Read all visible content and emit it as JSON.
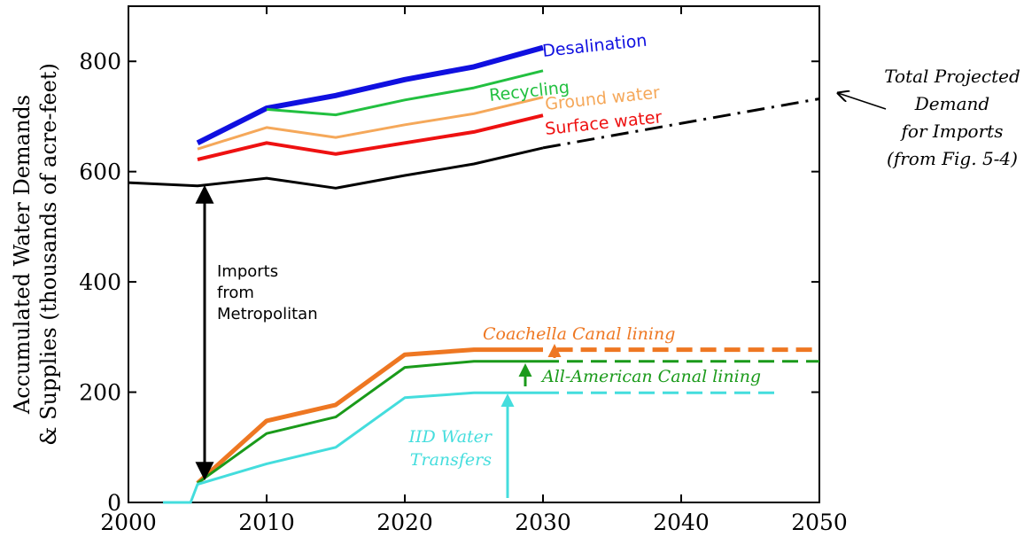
{
  "chart_data": {
    "type": "line",
    "xlabel": "",
    "ylabel_line1": "Accumulated Water Demands",
    "ylabel_line2": "& Supplies (thousands of acre-feet)",
    "xlim": [
      2000,
      2050
    ],
    "ylim": [
      0,
      900
    ],
    "x_ticks": [
      2000,
      2010,
      2020,
      2030,
      2040,
      2050
    ],
    "y_ticks": [
      0,
      200,
      400,
      600,
      800
    ],
    "grid": false,
    "series": [
      {
        "name": "Desalination",
        "color": "#1010e0",
        "style": "solid",
        "width": 6,
        "x": [
          2005,
          2010,
          2015,
          2020,
          2025,
          2030
        ],
        "y": [
          652,
          715,
          738,
          767,
          790,
          825
        ]
      },
      {
        "name": "Recycling",
        "color": "#22c040",
        "style": "solid",
        "width": 3,
        "x": [
          2010,
          2015,
          2020,
          2025,
          2030
        ],
        "y": [
          713,
          703,
          730,
          752,
          783
        ]
      },
      {
        "name": "Ground water",
        "color": "#f5a85a",
        "style": "solid",
        "width": 3,
        "x": [
          2005,
          2010,
          2015,
          2020,
          2025,
          2030
        ],
        "y": [
          641,
          680,
          662,
          685,
          705,
          735
        ]
      },
      {
        "name": "Surface water",
        "color": "#ee1111",
        "style": "solid",
        "width": 4,
        "x": [
          2005,
          2010,
          2015,
          2020,
          2025,
          2030
        ],
        "y": [
          622,
          652,
          632,
          652,
          672,
          702
        ]
      },
      {
        "name": "",
        "color": "#000000",
        "style": "solid",
        "width": 3,
        "x": [
          2000,
          2005,
          2010,
          2015,
          2020,
          2025,
          2030
        ],
        "y": [
          580,
          574,
          588,
          570,
          593,
          614,
          643
        ]
      },
      {
        "name": "",
        "color": "#000000",
        "style": "dashdot",
        "width": 3,
        "x": [
          2030,
          2050
        ],
        "y": [
          643,
          732
        ]
      },
      {
        "name": "",
        "color": "#ee7722",
        "style": "solid",
        "width": 5,
        "x": [
          2005,
          2010,
          2015,
          2020,
          2025,
          2030
        ],
        "y": [
          35,
          148,
          177,
          268,
          277,
          277
        ]
      },
      {
        "name": "",
        "color": "#ee7722",
        "style": "dashed",
        "width": 5,
        "x": [
          2031,
          2050
        ],
        "y": [
          277,
          277
        ]
      },
      {
        "name": "",
        "color": "#1a9a1a",
        "style": "solid",
        "width": 3,
        "x": [
          2005,
          2010,
          2015,
          2020,
          2025,
          2030
        ],
        "y": [
          35,
          125,
          155,
          245,
          256,
          256
        ]
      },
      {
        "name": "",
        "color": "#1a9a1a",
        "style": "dashed",
        "width": 3,
        "x": [
          2030,
          2050
        ],
        "y": [
          256,
          256
        ]
      },
      {
        "name": "",
        "color": "#44dddd",
        "style": "solid",
        "width": 3,
        "x": [
          2002.5,
          2004.5,
          2005,
          2010,
          2015,
          2020,
          2025,
          2030
        ],
        "y": [
          0,
          0,
          33,
          70,
          100,
          190,
          199,
          199
        ]
      },
      {
        "name": "",
        "color": "#44dddd",
        "style": "dashed",
        "width": 3,
        "x": [
          2030,
          2047
        ],
        "y": [
          199,
          199
        ]
      }
    ],
    "annotations": [
      {
        "text": "Desalination",
        "color": "#1010e0",
        "style": "sans"
      },
      {
        "text": "Recycling",
        "color": "#22c040",
        "style": "sans"
      },
      {
        "text": "Ground water",
        "color": "#f5a85a",
        "style": "sans"
      },
      {
        "text": "Surface water",
        "color": "#ee1111",
        "style": "sans"
      },
      {
        "text": "Imports",
        "color": "#000000",
        "style": "sans"
      },
      {
        "text": "from",
        "color": "#000000",
        "style": "sans"
      },
      {
        "text": "Metropolitan",
        "color": "#000000",
        "style": "sans"
      },
      {
        "text": "Coachella Canal lining",
        "color": "#ee7722",
        "style": "italic"
      },
      {
        "text": "All-American Canal lining",
        "color": "#1a9a1a",
        "style": "italic"
      },
      {
        "text": "IID Water",
        "color": "#44dddd",
        "style": "italic"
      },
      {
        "text": "Transfers",
        "color": "#44dddd",
        "style": "italic"
      },
      {
        "text": "Total Projected",
        "color": "#000000",
        "style": "italic"
      },
      {
        "text": "Demand",
        "color": "#000000",
        "style": "italic"
      },
      {
        "text": "for Imports",
        "color": "#000000",
        "style": "italic"
      },
      {
        "text": "(from Fig. 5-4)",
        "color": "#000000",
        "style": "italic"
      }
    ]
  }
}
